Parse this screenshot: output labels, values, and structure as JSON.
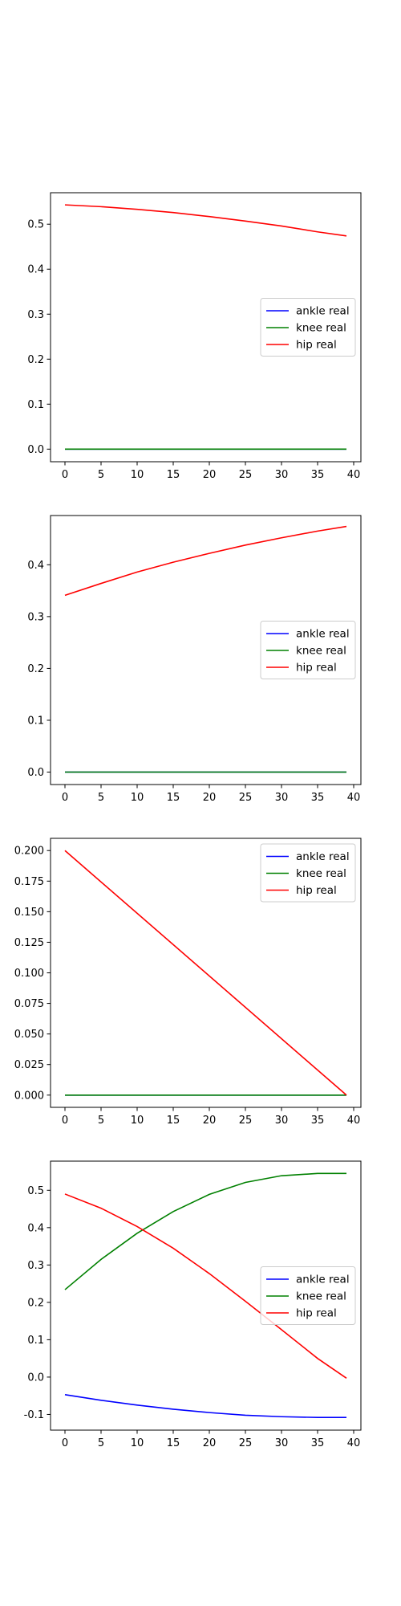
{
  "chart_data": [
    {
      "type": "line",
      "grid": false,
      "legend_position": "center-right",
      "xlim": [
        -2,
        41
      ],
      "ylim": [
        -0.028,
        0.57
      ],
      "xticks": [
        "0",
        "5",
        "10",
        "15",
        "20",
        "25",
        "30",
        "35",
        "40"
      ],
      "yticks": [
        "0.0",
        "0.1",
        "0.2",
        "0.3",
        "0.4",
        "0.5"
      ],
      "series": [
        {
          "name": "ankle real",
          "color": "#0000ff",
          "x": [
            0,
            39
          ],
          "y": [
            0.0,
            0.0
          ]
        },
        {
          "name": "knee real",
          "color": "#008000",
          "x": [
            0,
            39
          ],
          "y": [
            0.0,
            0.0
          ]
        },
        {
          "name": "hip real",
          "color": "#ff0000",
          "x": [
            0,
            5,
            10,
            15,
            20,
            25,
            30,
            35,
            39
          ],
          "y": [
            0.543,
            0.539,
            0.533,
            0.526,
            0.517,
            0.507,
            0.496,
            0.483,
            0.474
          ]
        }
      ]
    },
    {
      "type": "line",
      "grid": false,
      "legend_position": "center-right",
      "xlim": [
        -2,
        41
      ],
      "ylim": [
        -0.024,
        0.495
      ],
      "xticks": [
        "0",
        "5",
        "10",
        "15",
        "20",
        "25",
        "30",
        "35",
        "40"
      ],
      "yticks": [
        "0.0",
        "0.1",
        "0.2",
        "0.3",
        "0.4"
      ],
      "series": [
        {
          "name": "ankle real",
          "color": "#0000ff",
          "x": [
            0,
            39
          ],
          "y": [
            0.0,
            0.0
          ]
        },
        {
          "name": "knee real",
          "color": "#008000",
          "x": [
            0,
            39
          ],
          "y": [
            0.0,
            0.0
          ]
        },
        {
          "name": "hip real",
          "color": "#ff0000",
          "x": [
            0,
            5,
            10,
            15,
            20,
            25,
            30,
            35,
            39
          ],
          "y": [
            0.341,
            0.364,
            0.386,
            0.405,
            0.422,
            0.438,
            0.452,
            0.465,
            0.474
          ]
        }
      ]
    },
    {
      "type": "line",
      "grid": false,
      "legend_position": "upper-right",
      "xlim": [
        -2,
        41
      ],
      "ylim": [
        -0.01,
        0.21
      ],
      "xticks": [
        "0",
        "5",
        "10",
        "15",
        "20",
        "25",
        "30",
        "35",
        "40"
      ],
      "yticks": [
        "0.000",
        "0.025",
        "0.050",
        "0.075",
        "0.100",
        "0.125",
        "0.150",
        "0.175",
        "0.200"
      ],
      "series": [
        {
          "name": "ankle real",
          "color": "#0000ff",
          "x": [
            0,
            39
          ],
          "y": [
            0.0,
            0.0
          ]
        },
        {
          "name": "knee real",
          "color": "#008000",
          "x": [
            0,
            39
          ],
          "y": [
            0.0,
            0.0
          ]
        },
        {
          "name": "hip real",
          "color": "#ff0000",
          "x": [
            0,
            39
          ],
          "y": [
            0.2,
            0.0
          ]
        }
      ]
    },
    {
      "type": "line",
      "grid": false,
      "legend_position": "center-right",
      "xlim": [
        -2,
        41
      ],
      "ylim": [
        -0.142,
        0.578
      ],
      "xticks": [
        "0",
        "5",
        "10",
        "15",
        "20",
        "25",
        "30",
        "35",
        "40"
      ],
      "yticks": [
        "-0.1",
        "0.0",
        "0.1",
        "0.2",
        "0.3",
        "0.4",
        "0.5"
      ],
      "series": [
        {
          "name": "ankle real",
          "color": "#0000ff",
          "x": [
            0,
            5,
            10,
            15,
            20,
            25,
            30,
            35,
            39
          ],
          "y": [
            -0.047,
            -0.062,
            -0.075,
            -0.086,
            -0.095,
            -0.102,
            -0.106,
            -0.108,
            -0.108
          ]
        },
        {
          "name": "knee real",
          "color": "#008000",
          "x": [
            0,
            5,
            10,
            15,
            20,
            25,
            30,
            35,
            39
          ],
          "y": [
            0.234,
            0.315,
            0.385,
            0.443,
            0.489,
            0.521,
            0.539,
            0.545,
            0.545
          ]
        },
        {
          "name": "hip real",
          "color": "#ff0000",
          "x": [
            0,
            5,
            10,
            15,
            20,
            25,
            30,
            35,
            39
          ],
          "y": [
            0.49,
            0.452,
            0.403,
            0.345,
            0.277,
            0.203,
            0.127,
            0.05,
            -0.003
          ]
        }
      ]
    }
  ]
}
